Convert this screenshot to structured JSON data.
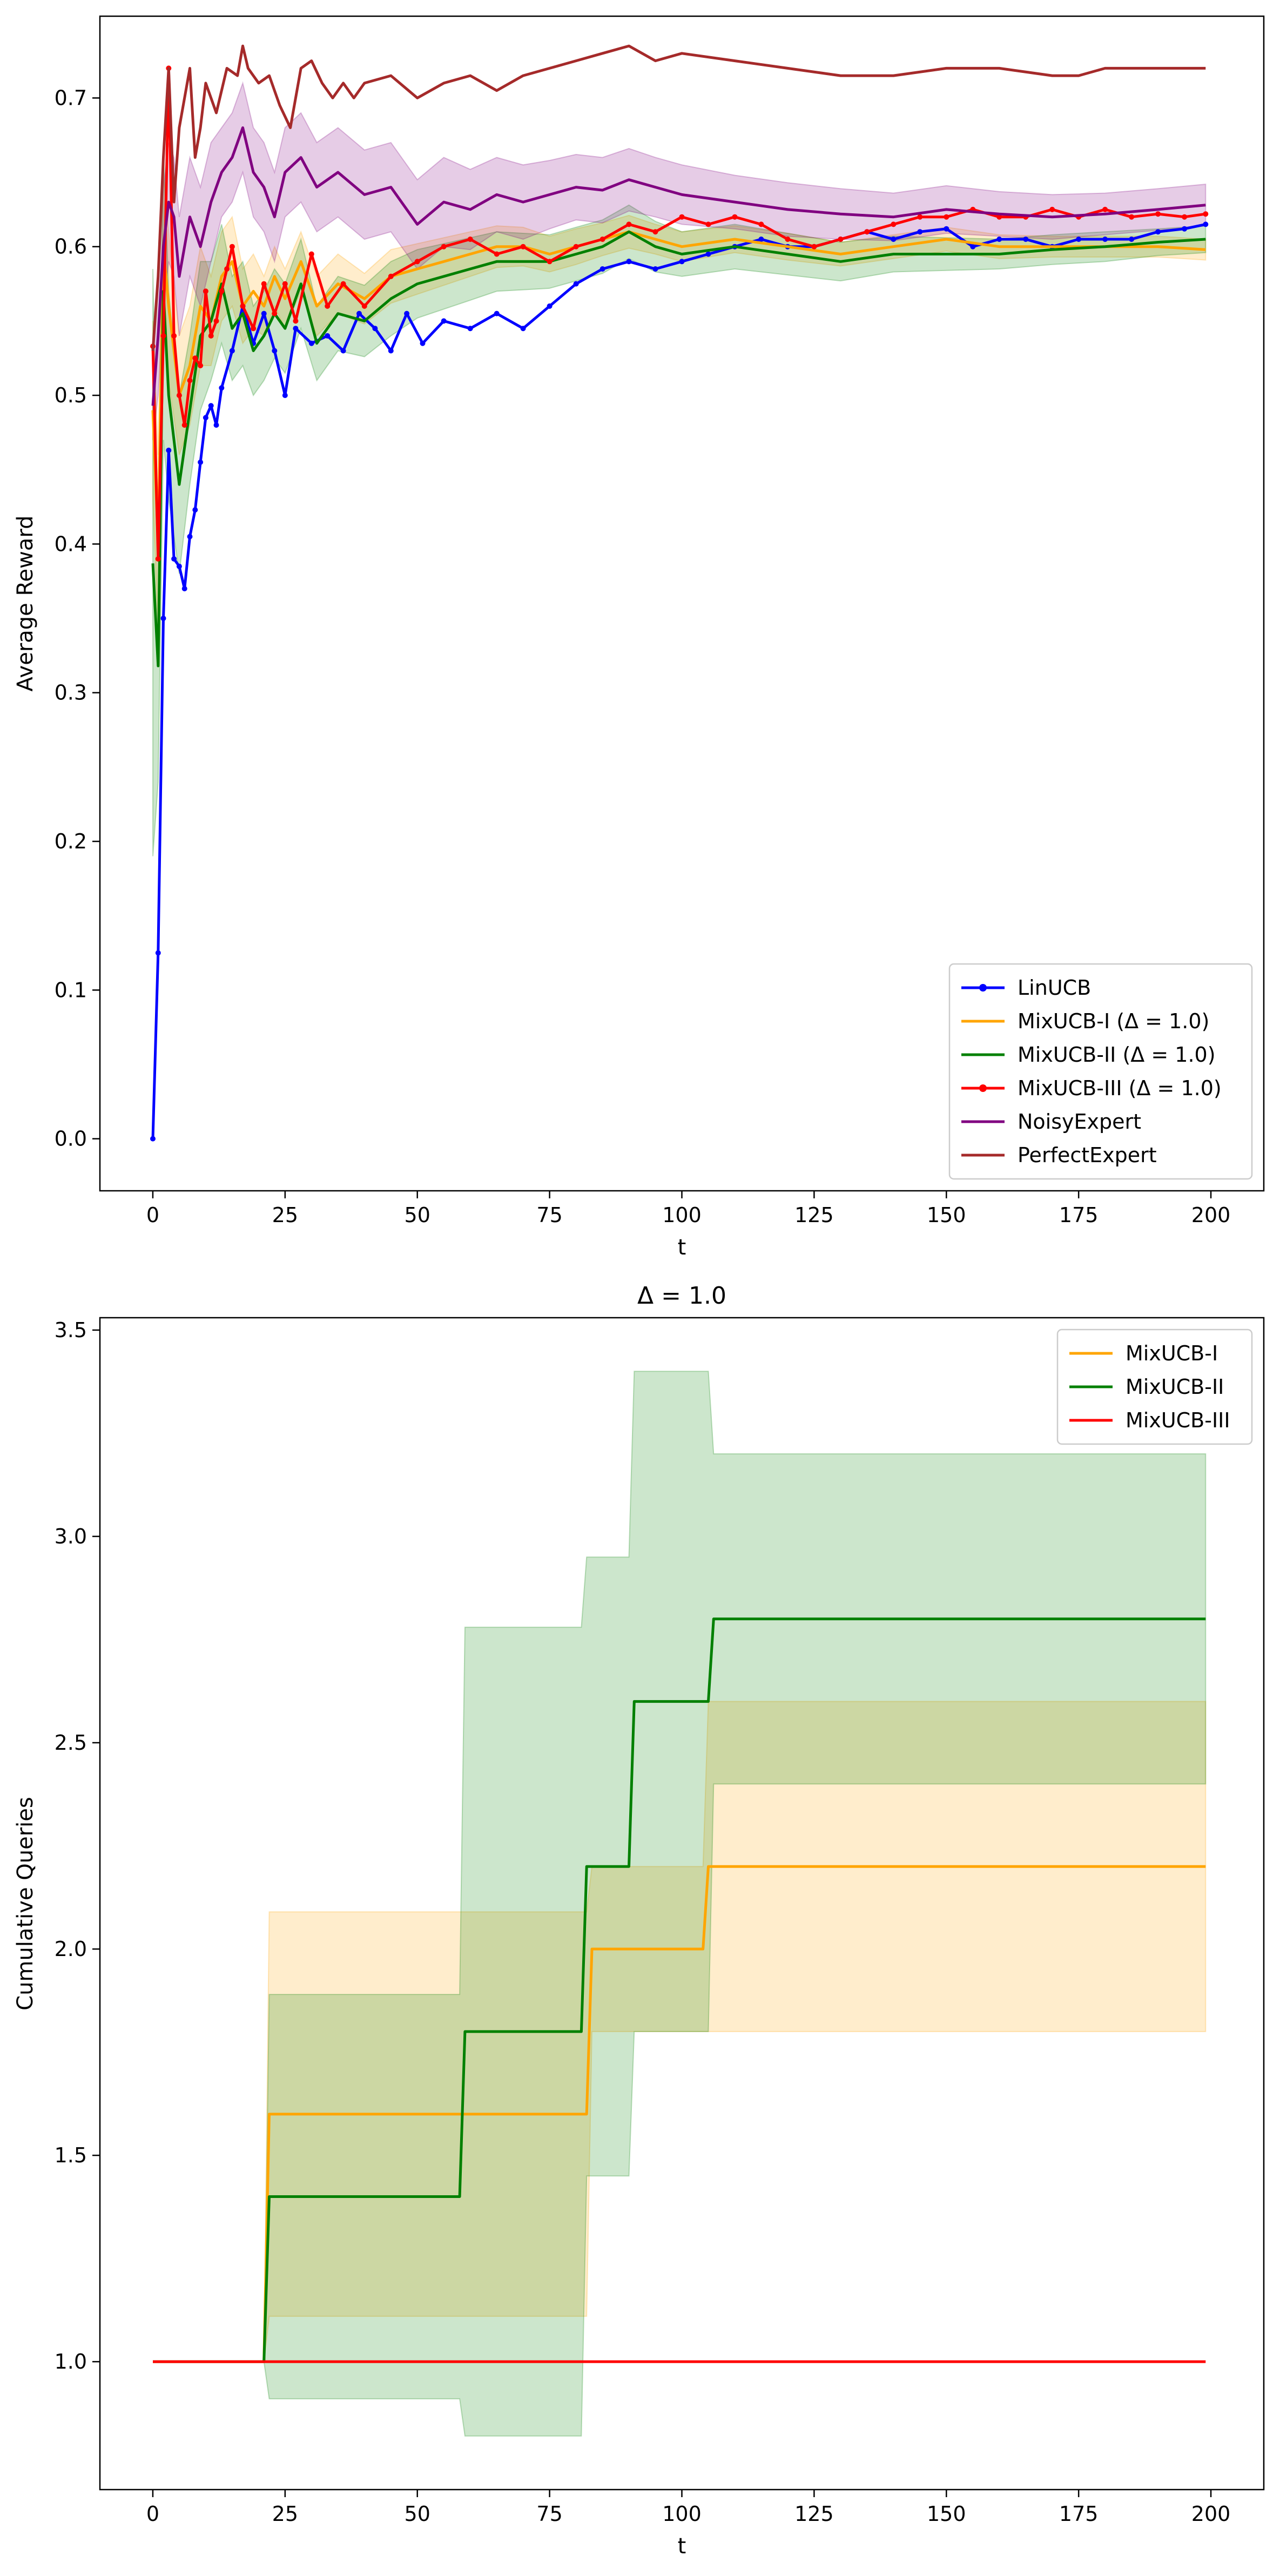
{
  "chart_data": [
    {
      "type": "line",
      "title": "",
      "xlabel": "t",
      "ylabel": "Average Reward",
      "xlim": [
        -10,
        210
      ],
      "ylim": [
        -0.035,
        0.755
      ],
      "xticks": [
        0,
        25,
        50,
        75,
        100,
        125,
        150,
        175,
        200
      ],
      "yticks": [
        0.0,
        0.1,
        0.2,
        0.3,
        0.4,
        0.5,
        0.6,
        0.7
      ],
      "tick_labels_x": [
        "0",
        "25",
        "50",
        "75",
        "100",
        "125",
        "150",
        "175",
        "200"
      ],
      "tick_labels_y": [
        "0.0",
        "0.1",
        "0.2",
        "0.3",
        "0.4",
        "0.5",
        "0.6",
        "0.7"
      ],
      "grid": false,
      "legend_position": "bottom-right",
      "series": [
        {
          "name": "LinUCB",
          "color": "#0000ff",
          "marker": "point",
          "x": [
            0,
            1,
            2,
            3,
            4,
            5,
            6,
            7,
            8,
            9,
            10,
            11,
            12,
            13,
            15,
            17,
            19,
            21,
            23,
            25,
            27,
            30,
            33,
            36,
            39,
            42,
            45,
            48,
            51,
            55,
            60,
            65,
            70,
            75,
            80,
            85,
            90,
            95,
            100,
            105,
            110,
            115,
            120,
            125,
            130,
            135,
            140,
            145,
            150,
            155,
            160,
            165,
            170,
            175,
            180,
            185,
            190,
            195,
            199
          ],
          "values": [
            0.0,
            0.125,
            0.35,
            0.463,
            0.39,
            0.385,
            0.37,
            0.405,
            0.423,
            0.455,
            0.485,
            0.493,
            0.48,
            0.505,
            0.53,
            0.56,
            0.535,
            0.555,
            0.53,
            0.5,
            0.545,
            0.535,
            0.54,
            0.53,
            0.555,
            0.545,
            0.53,
            0.555,
            0.535,
            0.55,
            0.545,
            0.555,
            0.545,
            0.56,
            0.575,
            0.585,
            0.59,
            0.585,
            0.59,
            0.595,
            0.6,
            0.605,
            0.6,
            0.6,
            0.605,
            0.61,
            0.605,
            0.61,
            0.612,
            0.6,
            0.605,
            0.605,
            0.6,
            0.605,
            0.605,
            0.605,
            0.61,
            0.612,
            0.615
          ]
        },
        {
          "name": "MixUCB-I (Δ = 1.0)",
          "color": "#ffa500",
          "marker": "none",
          "x": [
            0,
            1,
            2,
            3,
            5,
            7,
            9,
            11,
            13,
            15,
            17,
            19,
            21,
            23,
            25,
            28,
            31,
            35,
            40,
            45,
            50,
            55,
            60,
            65,
            70,
            75,
            80,
            85,
            90,
            95,
            100,
            110,
            120,
            130,
            140,
            150,
            160,
            170,
            180,
            190,
            199
          ],
          "values": [
            0.49,
            0.4,
            0.6,
            0.56,
            0.5,
            0.52,
            0.56,
            0.55,
            0.58,
            0.59,
            0.56,
            0.57,
            0.56,
            0.58,
            0.565,
            0.59,
            0.56,
            0.575,
            0.565,
            0.58,
            0.585,
            0.59,
            0.595,
            0.6,
            0.6,
            0.595,
            0.6,
            0.605,
            0.61,
            0.605,
            0.6,
            0.605,
            0.6,
            0.595,
            0.6,
            0.605,
            0.6,
            0.6,
            0.6,
            0.6,
            0.598
          ],
          "band_lower": [
            0.43,
            0.34,
            0.55,
            0.51,
            0.46,
            0.48,
            0.52,
            0.52,
            0.55,
            0.56,
            0.535,
            0.545,
            0.54,
            0.56,
            0.545,
            0.57,
            0.54,
            0.555,
            0.548,
            0.562,
            0.568,
            0.574,
            0.58,
            0.586,
            0.587,
            0.583,
            0.588,
            0.594,
            0.599,
            0.595,
            0.59,
            0.596,
            0.591,
            0.587,
            0.592,
            0.597,
            0.592,
            0.593,
            0.593,
            0.593,
            0.591
          ],
          "band_upper": [
            0.55,
            0.46,
            0.65,
            0.61,
            0.54,
            0.56,
            0.6,
            0.58,
            0.61,
            0.62,
            0.585,
            0.595,
            0.58,
            0.6,
            0.585,
            0.61,
            0.58,
            0.595,
            0.582,
            0.598,
            0.602,
            0.606,
            0.61,
            0.614,
            0.613,
            0.607,
            0.612,
            0.616,
            0.621,
            0.615,
            0.61,
            0.614,
            0.609,
            0.603,
            0.608,
            0.613,
            0.608,
            0.607,
            0.607,
            0.607,
            0.605
          ]
        },
        {
          "name": "MixUCB-II (Δ = 1.0)",
          "color": "#008000",
          "marker": "none",
          "x": [
            0,
            1,
            2,
            3,
            5,
            7,
            9,
            11,
            13,
            15,
            17,
            19,
            21,
            23,
            25,
            28,
            31,
            35,
            40,
            45,
            50,
            55,
            60,
            65,
            70,
            75,
            80,
            85,
            90,
            95,
            100,
            110,
            120,
            130,
            140,
            150,
            160,
            170,
            180,
            190,
            199
          ],
          "values": [
            0.387,
            0.318,
            0.57,
            0.5,
            0.44,
            0.49,
            0.54,
            0.55,
            0.575,
            0.545,
            0.555,
            0.53,
            0.54,
            0.555,
            0.545,
            0.575,
            0.535,
            0.555,
            0.55,
            0.565,
            0.575,
            0.58,
            0.585,
            0.59,
            0.59,
            0.59,
            0.595,
            0.6,
            0.61,
            0.6,
            0.595,
            0.6,
            0.595,
            0.59,
            0.595,
            0.595,
            0.595,
            0.598,
            0.6,
            0.603,
            0.605
          ],
          "band_lower": [
            0.19,
            0.24,
            0.47,
            0.43,
            0.38,
            0.44,
            0.49,
            0.51,
            0.535,
            0.51,
            0.52,
            0.5,
            0.51,
            0.525,
            0.515,
            0.545,
            0.51,
            0.53,
            0.526,
            0.54,
            0.552,
            0.558,
            0.564,
            0.57,
            0.571,
            0.572,
            0.577,
            0.582,
            0.592,
            0.583,
            0.58,
            0.585,
            0.581,
            0.577,
            0.583,
            0.584,
            0.585,
            0.588,
            0.59,
            0.594,
            0.596
          ],
          "band_upper": [
            0.585,
            0.4,
            0.67,
            0.57,
            0.5,
            0.54,
            0.59,
            0.59,
            0.615,
            0.58,
            0.59,
            0.56,
            0.57,
            0.585,
            0.575,
            0.605,
            0.56,
            0.58,
            0.574,
            0.59,
            0.598,
            0.602,
            0.606,
            0.61,
            0.609,
            0.608,
            0.613,
            0.618,
            0.628,
            0.617,
            0.61,
            0.615,
            0.609,
            0.603,
            0.607,
            0.606,
            0.605,
            0.608,
            0.61,
            0.612,
            0.614
          ]
        },
        {
          "name": "MixUCB-III (Δ = 1.0)",
          "color": "#ff0000",
          "marker": "point",
          "x": [
            0,
            1,
            2,
            3,
            4,
            5,
            6,
            7,
            8,
            9,
            10,
            11,
            12,
            13,
            14,
            15,
            17,
            19,
            21,
            23,
            25,
            27,
            30,
            33,
            36,
            40,
            45,
            50,
            55,
            60,
            65,
            70,
            75,
            80,
            85,
            90,
            95,
            100,
            105,
            110,
            115,
            120,
            125,
            130,
            135,
            140,
            145,
            150,
            155,
            160,
            165,
            170,
            175,
            180,
            185,
            190,
            195,
            199
          ],
          "values": [
            0.533,
            0.39,
            0.54,
            0.72,
            0.54,
            0.5,
            0.48,
            0.51,
            0.525,
            0.52,
            0.57,
            0.54,
            0.55,
            0.57,
            0.585,
            0.6,
            0.56,
            0.545,
            0.575,
            0.555,
            0.575,
            0.55,
            0.595,
            0.56,
            0.575,
            0.56,
            0.58,
            0.59,
            0.6,
            0.605,
            0.595,
            0.6,
            0.59,
            0.6,
            0.605,
            0.615,
            0.61,
            0.62,
            0.615,
            0.62,
            0.615,
            0.605,
            0.6,
            0.605,
            0.61,
            0.615,
            0.62,
            0.62,
            0.625,
            0.62,
            0.62,
            0.625,
            0.62,
            0.625,
            0.62,
            0.622,
            0.62,
            0.622
          ]
        },
        {
          "name": "NoisyExpert",
          "color": "#800080",
          "marker": "none",
          "x": [
            0,
            1,
            2,
            3,
            4,
            5,
            7,
            9,
            11,
            13,
            15,
            17,
            19,
            21,
            23,
            25,
            28,
            31,
            35,
            40,
            45,
            50,
            55,
            60,
            65,
            70,
            75,
            80,
            85,
            90,
            95,
            100,
            110,
            120,
            130,
            140,
            150,
            160,
            170,
            180,
            190,
            199
          ],
          "values": [
            0.493,
            0.54,
            0.6,
            0.63,
            0.62,
            0.58,
            0.62,
            0.6,
            0.63,
            0.65,
            0.66,
            0.68,
            0.65,
            0.64,
            0.62,
            0.65,
            0.66,
            0.64,
            0.65,
            0.635,
            0.64,
            0.615,
            0.63,
            0.625,
            0.635,
            0.63,
            0.635,
            0.64,
            0.638,
            0.645,
            0.64,
            0.635,
            0.63,
            0.625,
            0.622,
            0.62,
            0.625,
            0.622,
            0.62,
            0.622,
            0.625,
            0.628
          ],
          "band_lower": [
            0.47,
            0.5,
            0.56,
            0.59,
            0.58,
            0.54,
            0.58,
            0.56,
            0.59,
            0.62,
            0.63,
            0.65,
            0.62,
            0.61,
            0.59,
            0.62,
            0.63,
            0.61,
            0.62,
            0.605,
            0.61,
            0.585,
            0.6,
            0.598,
            0.61,
            0.605,
            0.612,
            0.618,
            0.616,
            0.624,
            0.62,
            0.615,
            0.612,
            0.607,
            0.605,
            0.604,
            0.609,
            0.607,
            0.605,
            0.608,
            0.611,
            0.614
          ],
          "band_upper": [
            0.52,
            0.58,
            0.64,
            0.67,
            0.66,
            0.62,
            0.66,
            0.64,
            0.67,
            0.68,
            0.69,
            0.71,
            0.68,
            0.67,
            0.65,
            0.68,
            0.69,
            0.67,
            0.68,
            0.665,
            0.67,
            0.645,
            0.66,
            0.652,
            0.66,
            0.655,
            0.658,
            0.662,
            0.66,
            0.666,
            0.66,
            0.655,
            0.648,
            0.643,
            0.639,
            0.636,
            0.641,
            0.637,
            0.635,
            0.636,
            0.639,
            0.642
          ]
        },
        {
          "name": "PerfectExpert",
          "color": "#a52a2a",
          "marker": "none",
          "x": [
            0,
            1,
            2,
            3,
            4,
            5,
            6,
            7,
            8,
            9,
            10,
            12,
            14,
            16,
            17,
            18,
            20,
            22,
            24,
            26,
            28,
            30,
            32,
            34,
            36,
            38,
            40,
            45,
            50,
            55,
            60,
            65,
            70,
            75,
            80,
            85,
            90,
            95,
            100,
            110,
            120,
            130,
            140,
            150,
            160,
            170,
            175,
            180,
            190,
            199
          ],
          "values": [
            0.53,
            0.58,
            0.66,
            0.72,
            0.63,
            0.68,
            0.7,
            0.72,
            0.66,
            0.68,
            0.71,
            0.69,
            0.72,
            0.715,
            0.735,
            0.72,
            0.71,
            0.715,
            0.695,
            0.68,
            0.72,
            0.725,
            0.71,
            0.7,
            0.71,
            0.7,
            0.71,
            0.715,
            0.7,
            0.71,
            0.715,
            0.705,
            0.715,
            0.72,
            0.725,
            0.73,
            0.735,
            0.725,
            0.73,
            0.725,
            0.72,
            0.715,
            0.715,
            0.72,
            0.72,
            0.715,
            0.715,
            0.72,
            0.72,
            0.72
          ]
        }
      ]
    },
    {
      "type": "line",
      "title": "Δ = 1.0",
      "xlabel": "t",
      "ylabel": "Cumulative Queries",
      "xlim": [
        -10,
        210
      ],
      "ylim": [
        0.69,
        3.53
      ],
      "xticks": [
        0,
        25,
        50,
        75,
        100,
        125,
        150,
        175,
        200
      ],
      "yticks": [
        1.0,
        1.5,
        2.0,
        2.5,
        3.0,
        3.5
      ],
      "tick_labels_x": [
        "0",
        "25",
        "50",
        "75",
        "100",
        "125",
        "150",
        "175",
        "200"
      ],
      "tick_labels_y": [
        "1.0",
        "1.5",
        "2.0",
        "2.5",
        "3.0",
        "3.5"
      ],
      "grid": false,
      "legend_position": "top-right",
      "series": [
        {
          "name": "MixUCB-I",
          "color": "#ffa500",
          "step": true,
          "x": [
            0,
            21,
            22,
            82,
            83,
            104,
            105,
            199
          ],
          "values": [
            1.0,
            1.0,
            1.6,
            1.6,
            2.0,
            2.0,
            2.2,
            2.2
          ],
          "band_lower": [
            1.0,
            1.0,
            1.11,
            1.11,
            1.8,
            1.8,
            1.8,
            1.8
          ],
          "band_upper": [
            1.0,
            1.0,
            2.09,
            2.09,
            2.2,
            2.2,
            2.6,
            2.6
          ]
        },
        {
          "name": "MixUCB-II",
          "color": "#008000",
          "step": true,
          "x": [
            0,
            21,
            22,
            58,
            59,
            81,
            82,
            90,
            91,
            105,
            106,
            199
          ],
          "values": [
            1.0,
            1.0,
            1.4,
            1.4,
            1.8,
            1.8,
            2.2,
            2.2,
            2.6,
            2.6,
            2.8,
            2.8
          ],
          "band_lower": [
            1.0,
            1.0,
            0.91,
            0.91,
            0.82,
            0.82,
            1.45,
            1.45,
            1.8,
            1.8,
            2.4,
            2.4
          ],
          "band_upper": [
            1.0,
            1.0,
            1.89,
            1.89,
            2.78,
            2.78,
            2.95,
            2.95,
            3.4,
            3.4,
            3.2,
            3.2
          ]
        },
        {
          "name": "MixUCB-III",
          "color": "#ff0000",
          "step": true,
          "x": [
            0,
            199
          ],
          "values": [
            1.0,
            1.0
          ]
        }
      ]
    }
  ]
}
